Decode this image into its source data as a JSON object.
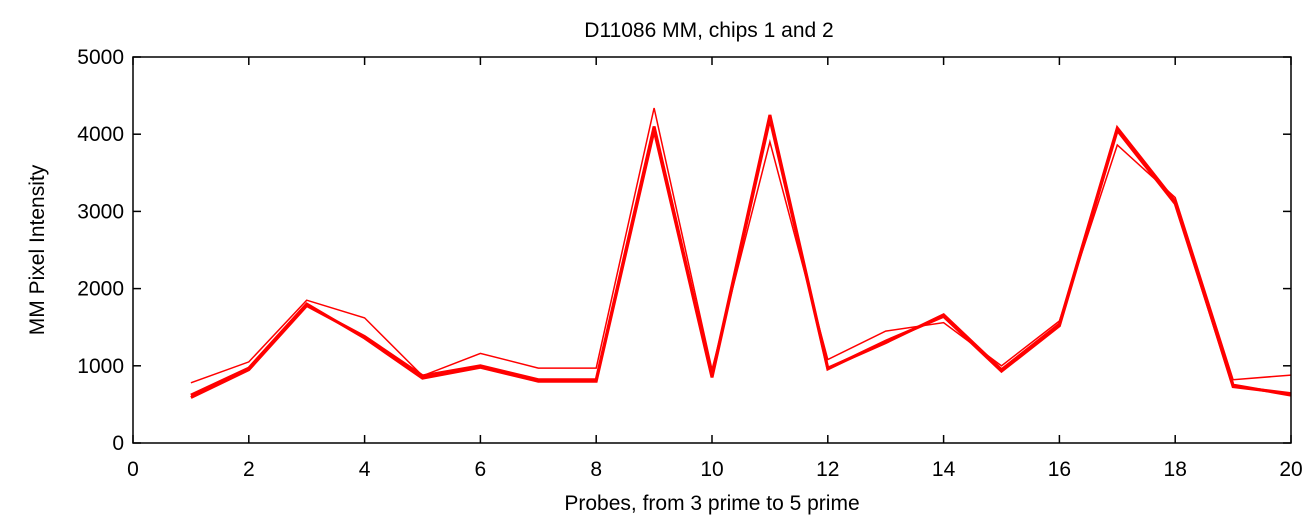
{
  "chart_data": {
    "type": "line",
    "title": "D11086 MM, chips 1 and 2",
    "xlabel": "Probes, from 3 prime to 5 prime",
    "ylabel": "MM Pixel Intensity",
    "xlim": [
      0,
      20
    ],
    "ylim": [
      0,
      5000
    ],
    "xticks": [
      0,
      2,
      4,
      6,
      8,
      10,
      12,
      14,
      16,
      18,
      20
    ],
    "yticks": [
      0,
      1000,
      2000,
      3000,
      4000,
      5000
    ],
    "grid": false,
    "line_color": "#ff0000",
    "x": [
      1,
      2,
      3,
      4,
      5,
      6,
      7,
      8,
      9,
      10,
      11,
      12,
      13,
      14,
      15,
      16,
      17,
      18,
      19,
      20
    ],
    "series": [
      {
        "values": [
          590,
          950,
          1780,
          1380,
          870,
          1000,
          820,
          820,
          4100,
          870,
          4250,
          970,
          1300,
          1660,
          950,
          1540,
          4080,
          3130,
          730,
          640
        ]
      },
      {
        "values": [
          620,
          970,
          1800,
          1360,
          840,
          980,
          800,
          800,
          4050,
          850,
          4200,
          960,
          1320,
          1640,
          930,
          1520,
          4050,
          3100,
          750,
          620
        ]
      },
      {
        "values": [
          780,
          1050,
          1850,
          1620,
          870,
          1160,
          970,
          970,
          4340,
          950,
          3900,
          1080,
          1450,
          1560,
          1000,
          1580,
          3860,
          3180,
          820,
          880
        ]
      }
    ]
  }
}
